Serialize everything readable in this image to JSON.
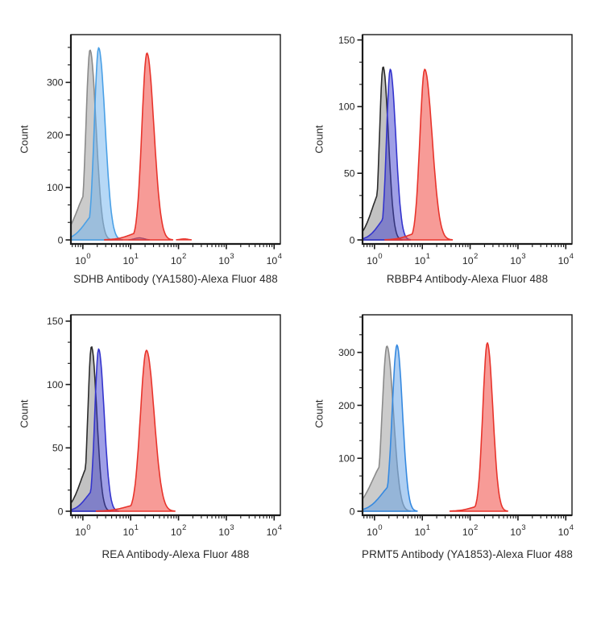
{
  "figure": {
    "background_color": "#ffffff",
    "frame_color": "#1a1a1a",
    "tick_label_color": "#262626",
    "panel_count": 4
  },
  "chart_data": [
    {
      "type": "area",
      "panel": "top-left",
      "xlabel": "SDHB Antibody (YA1580)-Alexa Fluor 488",
      "ylabel": "Count",
      "xscale": "log",
      "xlim_log10": [
        -0.25,
        4.13
      ],
      "x_major_ticks_log10": [
        0,
        1,
        2,
        3,
        4
      ],
      "x_tick_base": "10",
      "ylim": [
        0,
        391
      ],
      "y_major_ticks": [
        0,
        100,
        200,
        300
      ],
      "y_minor_divisions": 3,
      "grid": false,
      "legend": "none",
      "series": [
        {
          "name": "gray-control-peak",
          "peak_value": 1.4,
          "peak_log10": 0.15,
          "peak_count": 362,
          "sigma_left": 0.085,
          "sigma_right": 0.125,
          "tail_fraction": 0.27,
          "stroke": "#8a8a8a",
          "fill": "rgba(140,140,140,0.45)"
        },
        {
          "name": "blue-control-peak",
          "peak_value": 2.1,
          "peak_log10": 0.33,
          "peak_count": 366,
          "sigma_left": 0.09,
          "sigma_right": 0.135,
          "tail_fraction": 0.15,
          "stroke": "#4aa0e6",
          "fill": "rgba(110,178,238,0.5)"
        },
        {
          "name": "red-antibody-peak",
          "peak_value": 22,
          "peak_log10": 1.34,
          "peak_count": 356,
          "sigma_left": 0.105,
          "sigma_right": 0.145,
          "tail_fraction": 0.05,
          "stroke": "#e8342c",
          "fill": "rgba(240,72,66,0.55)"
        }
      ],
      "artifacts": [
        {
          "name": "baseline-navy-bump",
          "peak_log10": 1.18,
          "peak_count": 4,
          "sigma_left": 0.1,
          "sigma_right": 0.1,
          "tail_fraction": 0,
          "stroke": "#3c3c96",
          "fill": "rgba(70,70,150,0.45)"
        },
        {
          "name": "baseline-red-blip",
          "peak_log10": 2.12,
          "peak_count": 2.2,
          "sigma_left": 0.09,
          "sigma_right": 0.08,
          "tail_fraction": 0,
          "stroke": "#e8342c",
          "fill": "rgba(240,72,66,0.55)"
        }
      ]
    },
    {
      "type": "area",
      "panel": "top-right",
      "xlabel": "RBBP4 Antibody-Alexa Fluor 488",
      "ylabel": "Count",
      "xscale": "log",
      "xlim_log10": [
        -0.25,
        4.13
      ],
      "x_major_ticks_log10": [
        0,
        1,
        2,
        3,
        4
      ],
      "x_tick_base": "10",
      "ylim": [
        0,
        154
      ],
      "y_major_ticks": [
        0,
        50,
        100,
        150
      ],
      "y_minor_divisions": 3,
      "grid": false,
      "legend": "none",
      "series": [
        {
          "name": "black-control-peak",
          "peak_value": 1.5,
          "peak_log10": 0.18,
          "peak_count": 130,
          "sigma_left": 0.075,
          "sigma_right": 0.11,
          "tail_fraction": 0.3,
          "stroke": "#2b2b2b",
          "fill": "rgba(120,120,120,0.45)"
        },
        {
          "name": "blue-control-peak",
          "peak_value": 2.1,
          "peak_log10": 0.33,
          "peak_count": 128,
          "sigma_left": 0.078,
          "sigma_right": 0.115,
          "tail_fraction": 0.15,
          "stroke": "#3434cd",
          "fill": "rgba(64,64,205,0.5)"
        },
        {
          "name": "red-antibody-peak",
          "peak_value": 11,
          "peak_log10": 1.05,
          "peak_count": 128,
          "sigma_left": 0.1,
          "sigma_right": 0.155,
          "tail_fraction": 0.05,
          "stroke": "#e8342c",
          "fill": "rgba(240,72,66,0.55)"
        }
      ],
      "artifacts": []
    },
    {
      "type": "area",
      "panel": "bottom-left",
      "xlabel": "REA Antibody-Alexa Fluor 488",
      "ylabel": "Count",
      "xscale": "log",
      "xlim_log10": [
        -0.25,
        4.13
      ],
      "x_major_ticks_log10": [
        0,
        1,
        2,
        3,
        4
      ],
      "x_tick_base": "10",
      "ylim": [
        0,
        155
      ],
      "y_major_ticks": [
        0,
        50,
        100,
        150
      ],
      "y_minor_divisions": 3,
      "grid": false,
      "legend": "none",
      "series": [
        {
          "name": "black-control-peak",
          "peak_value": 1.5,
          "peak_log10": 0.18,
          "peak_count": 130,
          "sigma_left": 0.075,
          "sigma_right": 0.11,
          "tail_fraction": 0.3,
          "stroke": "#2b2b2b",
          "fill": "rgba(120,120,120,0.45)"
        },
        {
          "name": "blue-control-peak",
          "peak_value": 2.1,
          "peak_log10": 0.33,
          "peak_count": 128,
          "sigma_left": 0.08,
          "sigma_right": 0.115,
          "tail_fraction": 0.15,
          "stroke": "#3434cd",
          "fill": "rgba(64,64,205,0.5)"
        },
        {
          "name": "red-antibody-peak",
          "peak_value": 21,
          "peak_log10": 1.33,
          "peak_count": 127,
          "sigma_left": 0.125,
          "sigma_right": 0.16,
          "tail_fraction": 0.05,
          "stroke": "#e8342c",
          "fill": "rgba(240,72,66,0.55)"
        }
      ],
      "artifacts": []
    },
    {
      "type": "area",
      "panel": "bottom-right",
      "xlabel": "PRMT5 Antibody (YA1853)-Alexa Fluor 488",
      "ylabel": "Count",
      "xscale": "log",
      "xlim_log10": [
        -0.25,
        4.13
      ],
      "x_major_ticks_log10": [
        0,
        1,
        2,
        3,
        4
      ],
      "x_tick_base": "10",
      "ylim": [
        0,
        371
      ],
      "y_major_ticks": [
        0,
        100,
        200,
        300
      ],
      "y_minor_divisions": 3,
      "grid": false,
      "legend": "none",
      "series": [
        {
          "name": "gray-control-peak",
          "peak_value": 1.8,
          "peak_log10": 0.26,
          "peak_count": 312,
          "sigma_left": 0.1,
          "sigma_right": 0.135,
          "tail_fraction": 0.31,
          "stroke": "#8a8a8a",
          "fill": "rgba(140,140,140,0.45)"
        },
        {
          "name": "blue-control-peak",
          "peak_value": 3.0,
          "peak_log10": 0.47,
          "peak_count": 314,
          "sigma_left": 0.1,
          "sigma_right": 0.115,
          "tail_fraction": 0.18,
          "stroke": "#3589e0",
          "fill": "rgba(95,160,230,0.5)"
        },
        {
          "name": "red-antibody-peak",
          "peak_value": 230,
          "peak_log10": 2.36,
          "peak_count": 318,
          "sigma_left": 0.095,
          "sigma_right": 0.115,
          "tail_fraction": 0.04,
          "stroke": "#e8342c",
          "fill": "rgba(240,72,66,0.55)"
        }
      ],
      "artifacts": []
    }
  ]
}
